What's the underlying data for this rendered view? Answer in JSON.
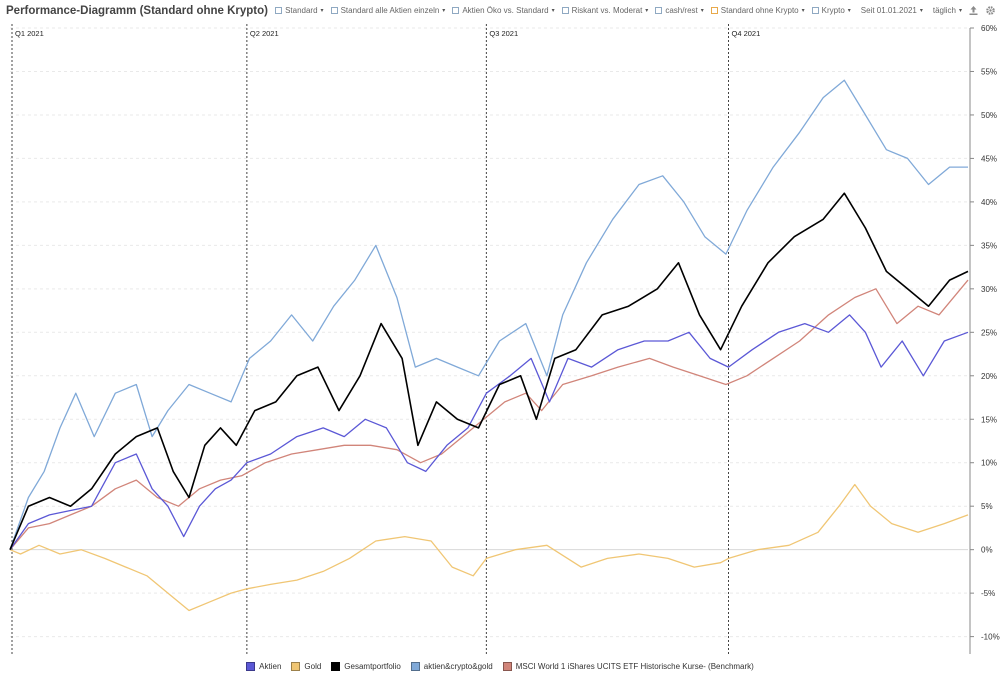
{
  "title": "Performance-Diagramm (Standard ohne Krypto)",
  "toolbar": {
    "portfolios": [
      {
        "label": "Standard",
        "color": "#8fa9c2"
      },
      {
        "label": "Standard alle Aktien einzeln",
        "color": "#8fa9c2"
      },
      {
        "label": "Aktien Öko vs. Standard",
        "color": "#8fa9c2"
      },
      {
        "label": "Riskant vs. Moderat",
        "color": "#8fa9c2"
      },
      {
        "label": "cash/rest",
        "color": "#8fa9c2"
      },
      {
        "label": "Standard ohne Krypto",
        "color": "#e8a94a"
      },
      {
        "label": "Krypto",
        "color": "#8fa9c2"
      }
    ],
    "since_label": "Seit 01.01.2021",
    "interval_label": "täglich",
    "export_icon": "upload-icon",
    "settings_icon": "gear-icon"
  },
  "chart_data": {
    "type": "line",
    "ylim": [
      -12,
      60
    ],
    "yticks": [
      -10,
      -5,
      0,
      5,
      10,
      15,
      20,
      25,
      30,
      35,
      40,
      45,
      50,
      55,
      60
    ],
    "ytick_suffix": "%",
    "x_range": [
      "2021-01-01",
      "2021-12-31"
    ],
    "quarters": [
      {
        "label": "Q1 2021",
        "date": "2021-01-01"
      },
      {
        "label": "Q2 2021",
        "date": "2021-04-01"
      },
      {
        "label": "Q3 2021",
        "date": "2021-07-01"
      },
      {
        "label": "Q4 2021",
        "date": "2021-10-01"
      }
    ],
    "grid": true,
    "legend_position": "bottom",
    "series": [
      {
        "name": "Aktien",
        "color": "#5b58d6",
        "points": [
          [
            "2021-01-01",
            0
          ],
          [
            "2021-01-08",
            3
          ],
          [
            "2021-01-16",
            4
          ],
          [
            "2021-01-24",
            4.5
          ],
          [
            "2021-02-01",
            5
          ],
          [
            "2021-02-10",
            10
          ],
          [
            "2021-02-18",
            11
          ],
          [
            "2021-02-24",
            7
          ],
          [
            "2021-03-02",
            5
          ],
          [
            "2021-03-08",
            1.5
          ],
          [
            "2021-03-14",
            5
          ],
          [
            "2021-03-20",
            7
          ],
          [
            "2021-03-26",
            8
          ],
          [
            "2021-04-01",
            10
          ],
          [
            "2021-04-10",
            11
          ],
          [
            "2021-04-20",
            13
          ],
          [
            "2021-04-30",
            14
          ],
          [
            "2021-05-08",
            13
          ],
          [
            "2021-05-16",
            15
          ],
          [
            "2021-05-24",
            14
          ],
          [
            "2021-06-01",
            10
          ],
          [
            "2021-06-08",
            9
          ],
          [
            "2021-06-16",
            12
          ],
          [
            "2021-06-24",
            14
          ],
          [
            "2021-07-01",
            18
          ],
          [
            "2021-07-10",
            20
          ],
          [
            "2021-07-18",
            22
          ],
          [
            "2021-07-25",
            17
          ],
          [
            "2021-08-01",
            22
          ],
          [
            "2021-08-10",
            21
          ],
          [
            "2021-08-20",
            23
          ],
          [
            "2021-08-30",
            24
          ],
          [
            "2021-09-08",
            24
          ],
          [
            "2021-09-16",
            25
          ],
          [
            "2021-09-24",
            22
          ],
          [
            "2021-10-01",
            21
          ],
          [
            "2021-10-10",
            23
          ],
          [
            "2021-10-20",
            25
          ],
          [
            "2021-10-30",
            26
          ],
          [
            "2021-11-08",
            25
          ],
          [
            "2021-11-16",
            27
          ],
          [
            "2021-11-22",
            25
          ],
          [
            "2021-11-28",
            21
          ],
          [
            "2021-12-06",
            24
          ],
          [
            "2021-12-14",
            20
          ],
          [
            "2021-12-22",
            24
          ],
          [
            "2021-12-31",
            25
          ]
        ]
      },
      {
        "name": "Gold",
        "color": "#f0c674",
        "points": [
          [
            "2021-01-01",
            0
          ],
          [
            "2021-01-05",
            -0.5
          ],
          [
            "2021-01-12",
            0.5
          ],
          [
            "2021-01-20",
            -0.5
          ],
          [
            "2021-01-28",
            0
          ],
          [
            "2021-02-06",
            -1
          ],
          [
            "2021-02-14",
            -2
          ],
          [
            "2021-02-22",
            -3
          ],
          [
            "2021-03-02",
            -5
          ],
          [
            "2021-03-10",
            -7
          ],
          [
            "2021-03-18",
            -6
          ],
          [
            "2021-03-26",
            -5
          ],
          [
            "2021-04-01",
            -4.5
          ],
          [
            "2021-04-10",
            -4
          ],
          [
            "2021-04-20",
            -3.5
          ],
          [
            "2021-04-30",
            -2.5
          ],
          [
            "2021-05-10",
            -1
          ],
          [
            "2021-05-20",
            1
          ],
          [
            "2021-05-31",
            1.5
          ],
          [
            "2021-06-10",
            1
          ],
          [
            "2021-06-18",
            -2
          ],
          [
            "2021-06-26",
            -3
          ],
          [
            "2021-07-01",
            -1
          ],
          [
            "2021-07-12",
            0
          ],
          [
            "2021-07-24",
            0.5
          ],
          [
            "2021-08-06",
            -2
          ],
          [
            "2021-08-16",
            -1
          ],
          [
            "2021-08-28",
            -0.5
          ],
          [
            "2021-09-08",
            -1
          ],
          [
            "2021-09-18",
            -2
          ],
          [
            "2021-09-28",
            -1.5
          ],
          [
            "2021-10-01",
            -1
          ],
          [
            "2021-10-12",
            0
          ],
          [
            "2021-10-24",
            0.5
          ],
          [
            "2021-11-04",
            2
          ],
          [
            "2021-11-12",
            5
          ],
          [
            "2021-11-18",
            7.5
          ],
          [
            "2021-11-24",
            5
          ],
          [
            "2021-12-02",
            3
          ],
          [
            "2021-12-12",
            2
          ],
          [
            "2021-12-22",
            3
          ],
          [
            "2021-12-31",
            4
          ]
        ]
      },
      {
        "name": "Gesamtportfolio",
        "color": "#000000",
        "points": [
          [
            "2021-01-01",
            0
          ],
          [
            "2021-01-08",
            5
          ],
          [
            "2021-01-16",
            6
          ],
          [
            "2021-01-24",
            5
          ],
          [
            "2021-02-01",
            7
          ],
          [
            "2021-02-10",
            11
          ],
          [
            "2021-02-18",
            13
          ],
          [
            "2021-02-26",
            14
          ],
          [
            "2021-03-04",
            9
          ],
          [
            "2021-03-10",
            6
          ],
          [
            "2021-03-16",
            12
          ],
          [
            "2021-03-22",
            14
          ],
          [
            "2021-03-28",
            12
          ],
          [
            "2021-04-04",
            16
          ],
          [
            "2021-04-12",
            17
          ],
          [
            "2021-04-20",
            20
          ],
          [
            "2021-04-28",
            21
          ],
          [
            "2021-05-06",
            16
          ],
          [
            "2021-05-14",
            20
          ],
          [
            "2021-05-22",
            26
          ],
          [
            "2021-05-30",
            22
          ],
          [
            "2021-06-05",
            12
          ],
          [
            "2021-06-12",
            17
          ],
          [
            "2021-06-20",
            15
          ],
          [
            "2021-06-28",
            14
          ],
          [
            "2021-07-06",
            19
          ],
          [
            "2021-07-14",
            20
          ],
          [
            "2021-07-20",
            15
          ],
          [
            "2021-07-27",
            22
          ],
          [
            "2021-08-04",
            23
          ],
          [
            "2021-08-14",
            27
          ],
          [
            "2021-08-24",
            28
          ],
          [
            "2021-09-04",
            30
          ],
          [
            "2021-09-12",
            33
          ],
          [
            "2021-09-20",
            27
          ],
          [
            "2021-09-28",
            23
          ],
          [
            "2021-10-06",
            28
          ],
          [
            "2021-10-16",
            33
          ],
          [
            "2021-10-26",
            36
          ],
          [
            "2021-11-06",
            38
          ],
          [
            "2021-11-14",
            41
          ],
          [
            "2021-11-22",
            37
          ],
          [
            "2021-11-30",
            32
          ],
          [
            "2021-12-08",
            30
          ],
          [
            "2021-12-16",
            28
          ],
          [
            "2021-12-24",
            31
          ],
          [
            "2021-12-31",
            32
          ]
        ]
      },
      {
        "name": "aktien&crypto&gold",
        "color": "#80a9d8",
        "points": [
          [
            "2021-01-01",
            0
          ],
          [
            "2021-01-08",
            6
          ],
          [
            "2021-01-14",
            9
          ],
          [
            "2021-01-20",
            14
          ],
          [
            "2021-01-26",
            18
          ],
          [
            "2021-02-02",
            13
          ],
          [
            "2021-02-10",
            18
          ],
          [
            "2021-02-18",
            19
          ],
          [
            "2021-02-24",
            13
          ],
          [
            "2021-03-02",
            16
          ],
          [
            "2021-03-10",
            19
          ],
          [
            "2021-03-18",
            18
          ],
          [
            "2021-03-26",
            17
          ],
          [
            "2021-04-02",
            22
          ],
          [
            "2021-04-10",
            24
          ],
          [
            "2021-04-18",
            27
          ],
          [
            "2021-04-26",
            24
          ],
          [
            "2021-05-04",
            28
          ],
          [
            "2021-05-12",
            31
          ],
          [
            "2021-05-20",
            35
          ],
          [
            "2021-05-28",
            29
          ],
          [
            "2021-06-04",
            21
          ],
          [
            "2021-06-12",
            22
          ],
          [
            "2021-06-20",
            21
          ],
          [
            "2021-06-28",
            20
          ],
          [
            "2021-07-06",
            24
          ],
          [
            "2021-07-16",
            26
          ],
          [
            "2021-07-24",
            20
          ],
          [
            "2021-07-30",
            27
          ],
          [
            "2021-08-08",
            33
          ],
          [
            "2021-08-18",
            38
          ],
          [
            "2021-08-28",
            42
          ],
          [
            "2021-09-06",
            43
          ],
          [
            "2021-09-14",
            40
          ],
          [
            "2021-09-22",
            36
          ],
          [
            "2021-09-30",
            34
          ],
          [
            "2021-10-08",
            39
          ],
          [
            "2021-10-18",
            44
          ],
          [
            "2021-10-28",
            48
          ],
          [
            "2021-11-06",
            52
          ],
          [
            "2021-11-14",
            54
          ],
          [
            "2021-11-22",
            50
          ],
          [
            "2021-11-30",
            46
          ],
          [
            "2021-12-08",
            45
          ],
          [
            "2021-12-16",
            42
          ],
          [
            "2021-12-24",
            44
          ],
          [
            "2021-12-31",
            44
          ]
        ]
      },
      {
        "name": "MSCI World 1  iShares UCITS ETF Historische Kurse- (Benchmark)",
        "color": "#d1857a",
        "points": [
          [
            "2021-01-01",
            0
          ],
          [
            "2021-01-08",
            2.5
          ],
          [
            "2021-01-16",
            3
          ],
          [
            "2021-01-24",
            4
          ],
          [
            "2021-02-01",
            5
          ],
          [
            "2021-02-10",
            7
          ],
          [
            "2021-02-18",
            8
          ],
          [
            "2021-02-26",
            6
          ],
          [
            "2021-03-06",
            5
          ],
          [
            "2021-03-14",
            7
          ],
          [
            "2021-03-22",
            8
          ],
          [
            "2021-03-30",
            8.5
          ],
          [
            "2021-04-08",
            10
          ],
          [
            "2021-04-18",
            11
          ],
          [
            "2021-04-28",
            11.5
          ],
          [
            "2021-05-08",
            12
          ],
          [
            "2021-05-18",
            12
          ],
          [
            "2021-05-28",
            11.5
          ],
          [
            "2021-06-06",
            10
          ],
          [
            "2021-06-14",
            11
          ],
          [
            "2021-06-22",
            13
          ],
          [
            "2021-06-30",
            15
          ],
          [
            "2021-07-08",
            17
          ],
          [
            "2021-07-16",
            18
          ],
          [
            "2021-07-22",
            16
          ],
          [
            "2021-07-30",
            19
          ],
          [
            "2021-08-10",
            20
          ],
          [
            "2021-08-20",
            21
          ],
          [
            "2021-09-01",
            22
          ],
          [
            "2021-09-10",
            21
          ],
          [
            "2021-09-20",
            20
          ],
          [
            "2021-09-30",
            19
          ],
          [
            "2021-10-08",
            20
          ],
          [
            "2021-10-18",
            22
          ],
          [
            "2021-10-28",
            24
          ],
          [
            "2021-11-08",
            27
          ],
          [
            "2021-11-18",
            29
          ],
          [
            "2021-11-26",
            30
          ],
          [
            "2021-12-04",
            26
          ],
          [
            "2021-12-12",
            28
          ],
          [
            "2021-12-20",
            27
          ],
          [
            "2021-12-31",
            31
          ]
        ]
      }
    ]
  }
}
